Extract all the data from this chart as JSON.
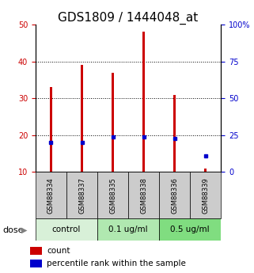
{
  "title": "GDS1809 / 1444048_at",
  "categories": [
    "GSM88334",
    "GSM88337",
    "GSM88335",
    "GSM88338",
    "GSM88336",
    "GSM88339"
  ],
  "groups": [
    {
      "label": "control",
      "indices": [
        0,
        1
      ],
      "color": "#d8f0d8"
    },
    {
      "label": "0.1 ug/ml",
      "indices": [
        2,
        3
      ],
      "color": "#b0e8b0"
    },
    {
      "label": "0.5 ug/ml",
      "indices": [
        4,
        5
      ],
      "color": "#80dd80"
    }
  ],
  "red_values": [
    33,
    39,
    37,
    48,
    31,
    11
  ],
  "blue_values": [
    20,
    20,
    24,
    24,
    23,
    11
  ],
  "left_ylim": [
    10,
    50
  ],
  "left_yticks": [
    10,
    20,
    30,
    40,
    50
  ],
  "right_ylim": [
    0,
    100
  ],
  "right_yticks": [
    0,
    25,
    50,
    75,
    100
  ],
  "right_yticklabels": [
    "0",
    "25",
    "50",
    "75",
    "100%"
  ],
  "red_color": "#cc0000",
  "blue_color": "#0000cc",
  "bar_width": 0.08,
  "background_color": "#ffffff",
  "label_bg_color": "#cccccc",
  "group_label_colors": [
    "#d8f0d8",
    "#b0e8b0",
    "#80dd80"
  ],
  "dose_label": "dose",
  "legend_count": "count",
  "legend_percentile": "percentile rank within the sample",
  "title_fontsize": 11,
  "tick_fontsize": 7,
  "label_fontsize": 9
}
